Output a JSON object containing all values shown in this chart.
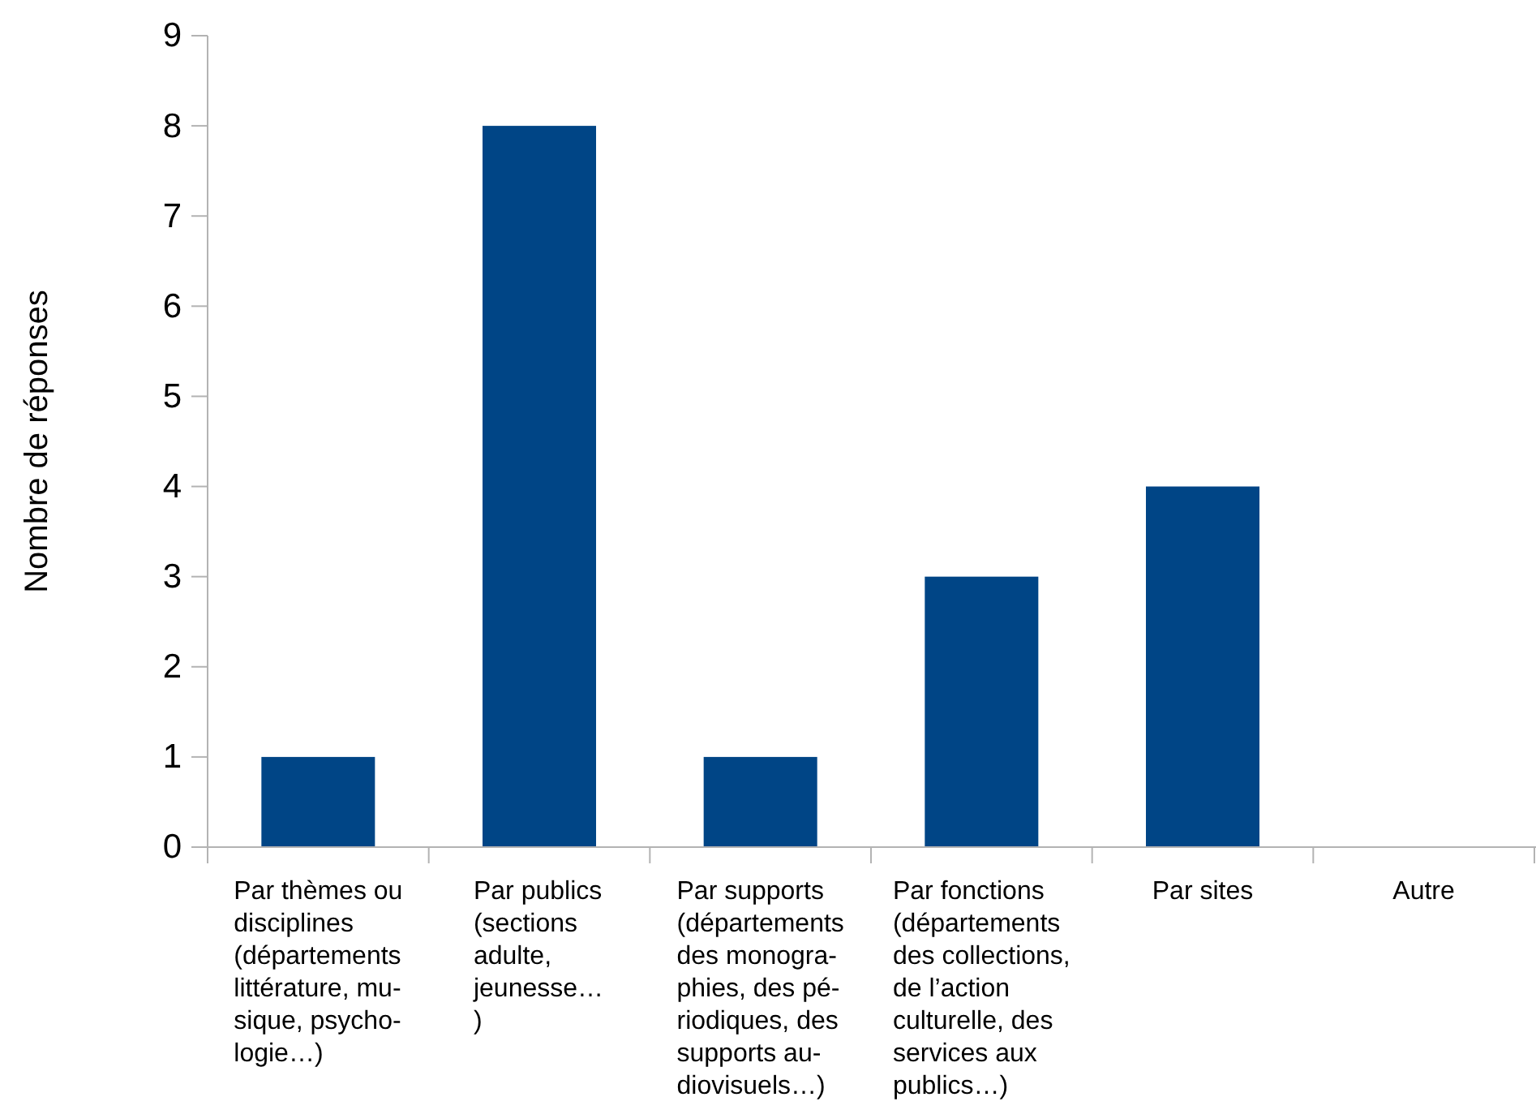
{
  "chart_data": {
    "type": "bar",
    "ylabel": "Nombre de réponses",
    "categories": [
      "Par thèmes ou\ndisciplines\n(départements\nlittérature, mu-\nsique, psycho-\nlogie…)",
      "Par publics\n(sections\nadulte,\njeunesse…\n)",
      "Par supports\n(départements\ndes monogra-\nphies, des pé-\nriodiques, des\nsupports au-\ndiovisuels…)",
      "Par fonctions\n(départements\ndes collections,\nde l’action\nculturelle, des\nservices aux\npublics…)",
      "Par sites",
      "Autre"
    ],
    "values": [
      1,
      8,
      1,
      3,
      4,
      0
    ],
    "color": "#004586",
    "ylim": [
      0,
      9
    ],
    "yticks": [
      0,
      1,
      2,
      3,
      4,
      5,
      6,
      7,
      8,
      9
    ],
    "grid": false
  }
}
